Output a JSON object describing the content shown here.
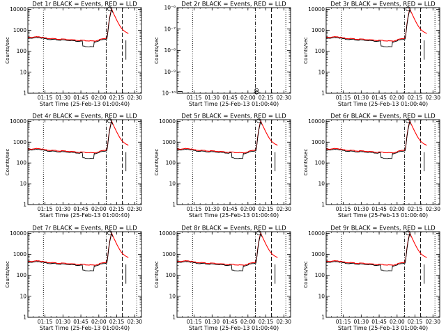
{
  "chart_data": [
    {
      "type": "line",
      "title": "Det 1r BLACK = Events, RED = LLD",
      "xlabel": "Start Time (25-Feb-13 01:00:40)",
      "ylabel": "Counts/sec",
      "yscale": "log",
      "ylim": [
        1,
        12000
      ],
      "xlim": [
        0,
        95
      ],
      "xtick_labels": [
        "01:15",
        "01:30",
        "01:45",
        "02:00",
        "02:15",
        "02:30"
      ],
      "ytick_labels": [
        "1",
        "10",
        "100",
        "1000",
        "10000"
      ],
      "has_data": true,
      "legend": "none",
      "grid": false,
      "series": [
        {
          "name": "BLACK = Events",
          "color": "#000000"
        },
        {
          "name": "RED = LLD",
          "color": "#ff0000"
        }
      ]
    },
    {
      "type": "line",
      "title": "Det 2r BLACK = Events, RED = LLD",
      "xlabel": "Start Time (25-Feb-13 01:00:40)",
      "ylabel": "Counts/sec",
      "yscale": "log",
      "ylim": [
        1e-10,
        1e-06
      ],
      "xlim": [
        0,
        95
      ],
      "xtick_labels": [
        "01:15",
        "01:30",
        "01:45",
        "02:00",
        "02:15",
        "02:30"
      ],
      "ytick_labels": [
        "10⁻¹⁰",
        "10⁻⁹",
        "10⁻⁸",
        "10⁻⁷",
        "10⁻⁶"
      ],
      "has_data": false,
      "legend": "none",
      "grid": false,
      "series": [
        {
          "name": "BLACK = Events",
          "color": "#000000"
        },
        {
          "name": "RED = LLD",
          "color": "#ff0000"
        }
      ]
    },
    {
      "type": "line",
      "title": "Det 3r BLACK = Events, RED = LLD",
      "xlabel": "Start Time (25-Feb-13 01:00:40)",
      "ylabel": "Counts/sec",
      "yscale": "log",
      "ylim": [
        1,
        12000
      ],
      "xlim": [
        0,
        95
      ],
      "xtick_labels": [
        "01:15",
        "01:30",
        "01:45",
        "02:00",
        "02:15",
        "02:30"
      ],
      "ytick_labels": [
        "1",
        "10",
        "100",
        "1000",
        "10000"
      ],
      "has_data": true,
      "legend": "none",
      "grid": false,
      "series": [
        {
          "name": "BLACK = Events",
          "color": "#000000"
        },
        {
          "name": "RED = LLD",
          "color": "#ff0000"
        }
      ]
    },
    {
      "type": "line",
      "title": "Det 4r BLACK = Events, RED = LLD",
      "xlabel": "Start Time (25-Feb-13 01:00:40)",
      "ylabel": "Counts/sec",
      "yscale": "log",
      "ylim": [
        1,
        12000
      ],
      "xlim": [
        0,
        95
      ],
      "xtick_labels": [
        "01:15",
        "01:30",
        "01:45",
        "02:00",
        "02:15",
        "02:30"
      ],
      "ytick_labels": [
        "1",
        "10",
        "100",
        "1000",
        "10000"
      ],
      "has_data": true,
      "legend": "none",
      "grid": false,
      "series": [
        {
          "name": "BLACK = Events",
          "color": "#000000"
        },
        {
          "name": "RED = LLD",
          "color": "#ff0000"
        }
      ]
    },
    {
      "type": "line",
      "title": "Det 5r BLACK = Events, RED = LLD",
      "xlabel": "Start Time (25-Feb-13 01:00:40)",
      "ylabel": "Counts/sec",
      "yscale": "log",
      "ylim": [
        1,
        12000
      ],
      "xlim": [
        0,
        95
      ],
      "xtick_labels": [
        "01:15",
        "01:30",
        "01:45",
        "02:00",
        "02:15",
        "02:30"
      ],
      "ytick_labels": [
        "1",
        "10",
        "100",
        "1000",
        "10000"
      ],
      "has_data": true,
      "legend": "none",
      "grid": false,
      "series": [
        {
          "name": "BLACK = Events",
          "color": "#000000"
        },
        {
          "name": "RED = LLD",
          "color": "#ff0000"
        }
      ]
    },
    {
      "type": "line",
      "title": "Det 6r BLACK = Events, RED = LLD",
      "xlabel": "Start Time (25-Feb-13 01:00:40)",
      "ylabel": "Counts/sec",
      "yscale": "log",
      "ylim": [
        1,
        12000
      ],
      "xlim": [
        0,
        95
      ],
      "xtick_labels": [
        "01:15",
        "01:30",
        "01:45",
        "02:00",
        "02:15",
        "02:30"
      ],
      "ytick_labels": [
        "1",
        "10",
        "100",
        "1000",
        "10000"
      ],
      "has_data": true,
      "legend": "none",
      "grid": false,
      "series": [
        {
          "name": "BLACK = Events",
          "color": "#000000"
        },
        {
          "name": "RED = LLD",
          "color": "#ff0000"
        }
      ]
    },
    {
      "type": "line",
      "title": "Det 7r BLACK = Events, RED = LLD",
      "xlabel": "Start Time (25-Feb-13 01:00:40)",
      "ylabel": "Counts/sec",
      "yscale": "log",
      "ylim": [
        1,
        12000
      ],
      "xlim": [
        0,
        95
      ],
      "xtick_labels": [
        "01:15",
        "01:30",
        "01:45",
        "02:00",
        "02:15",
        "02:30"
      ],
      "ytick_labels": [
        "1",
        "10",
        "100",
        "1000",
        "10000"
      ],
      "has_data": true,
      "legend": "none",
      "grid": false,
      "series": [
        {
          "name": "BLACK = Events",
          "color": "#000000"
        },
        {
          "name": "RED = LLD",
          "color": "#ff0000"
        }
      ]
    },
    {
      "type": "line",
      "title": "Det 8r BLACK = Events, RED = LLD",
      "xlabel": "Start Time (25-Feb-13 01:00:40)",
      "ylabel": "Counts/sec",
      "yscale": "log",
      "ylim": [
        1,
        12000
      ],
      "xlim": [
        0,
        95
      ],
      "xtick_labels": [
        "01:15",
        "01:30",
        "01:45",
        "02:00",
        "02:15",
        "02:30"
      ],
      "ytick_labels": [
        "1",
        "10",
        "100",
        "1000",
        "10000"
      ],
      "has_data": true,
      "legend": "none",
      "grid": false,
      "series": [
        {
          "name": "BLACK = Events",
          "color": "#000000"
        },
        {
          "name": "RED = LLD",
          "color": "#ff0000"
        }
      ]
    },
    {
      "type": "line",
      "title": "Det 9r BLACK = Events, RED = LLD",
      "xlabel": "Start Time (25-Feb-13 01:00:40)",
      "ylabel": "Counts/sec",
      "yscale": "log",
      "ylim": [
        1,
        12000
      ],
      "xlim": [
        0,
        95
      ],
      "xtick_labels": [
        "01:15",
        "01:30",
        "01:45",
        "02:00",
        "02:15",
        "02:30"
      ],
      "ytick_labels": [
        "1",
        "10",
        "100",
        "1000",
        "10000"
      ],
      "has_data": true,
      "legend": "none",
      "grid": false,
      "series": [
        {
          "name": "BLACK = Events",
          "color": "#000000"
        },
        {
          "name": "RED = LLD",
          "color": "#ff0000"
        }
      ]
    }
  ]
}
